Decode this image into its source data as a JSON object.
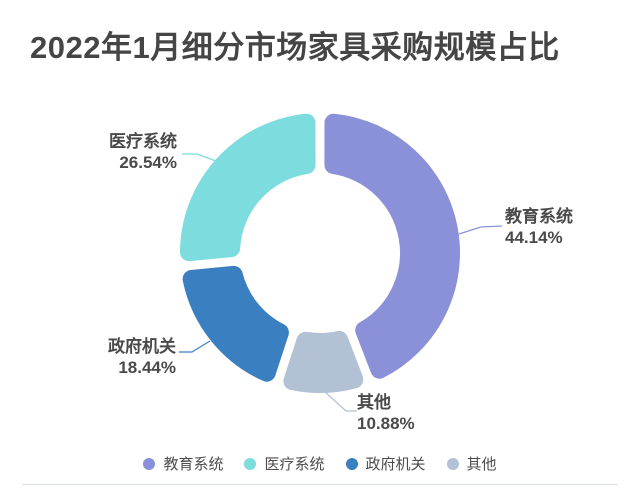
{
  "title": "2022年1月细分市场家具采购规模占比",
  "chart_data": {
    "type": "pie",
    "subtype": "donut",
    "title": "2022年1月细分市场家具采购规模占比",
    "unit": "%",
    "start_angle_deg": 0,
    "clockwise": true,
    "inner_radius_ratio": 0.57,
    "rounded_segment_corners": true,
    "segments": [
      {
        "id": "education",
        "label": "教育系统",
        "value": 44.14,
        "pct_label": "44.14%",
        "color": "#8A91D8"
      },
      {
        "id": "other",
        "label": "其他",
        "value": 10.88,
        "pct_label": "10.88%",
        "color": "#B3C1D4"
      },
      {
        "id": "government",
        "label": "政府机关",
        "value": 18.44,
        "pct_label": "18.44%",
        "color": "#3A80C1"
      },
      {
        "id": "medical",
        "label": "医疗系统",
        "value": 26.54,
        "pct_label": "26.54%",
        "color": "#7DDCDD"
      }
    ],
    "legend": [
      "教育系统",
      "医疗系统",
      "政府机关",
      "其他"
    ],
    "legend_position": "bottom",
    "label_style": "outside-with-leader-lines"
  }
}
